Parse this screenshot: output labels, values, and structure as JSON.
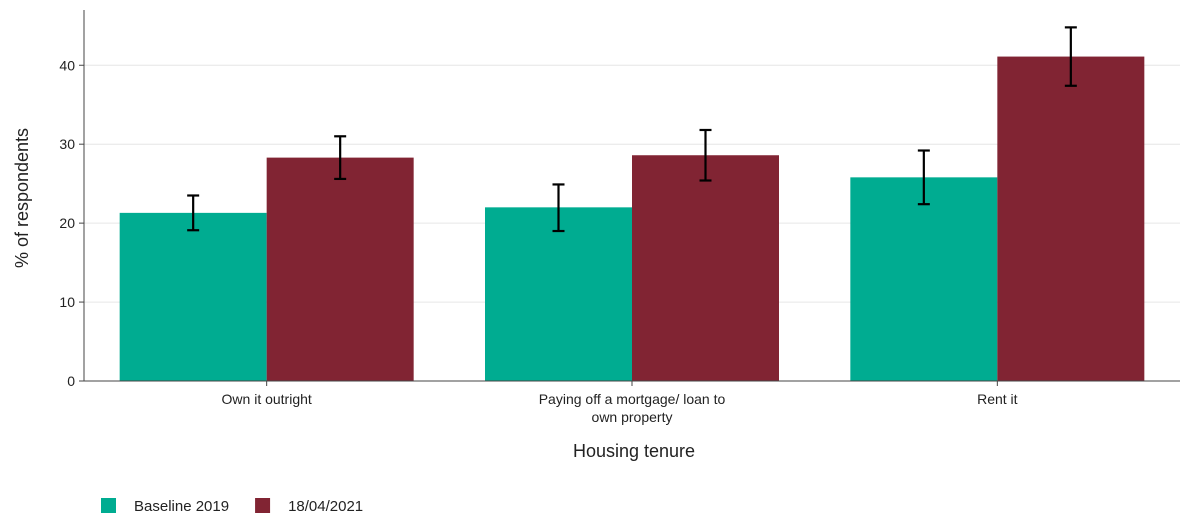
{
  "chart_data": {
    "type": "bar",
    "title": "",
    "xlabel": "Housing tenure",
    "ylabel": "% of respondents",
    "categories": [
      [
        "Own it outright"
      ],
      [
        "Paying off a mortgage/ loan to",
        "own property"
      ],
      [
        "Rent it"
      ]
    ],
    "series": [
      {
        "name": "Baseline 2019",
        "color": "#00ac91",
        "values": [
          21.3,
          22.0,
          25.8
        ],
        "error_low": [
          19.1,
          19.0,
          22.4
        ],
        "error_high": [
          23.5,
          24.9,
          29.2
        ]
      },
      {
        "name": "18/04/2021",
        "color": "#812433",
        "values": [
          28.3,
          28.6,
          41.1
        ],
        "error_low": [
          25.6,
          25.4,
          37.4
        ],
        "error_high": [
          31.0,
          31.8,
          44.8
        ]
      }
    ],
    "ylim": [
      0,
      47
    ],
    "yticks": [
      0,
      10,
      20,
      30,
      40
    ],
    "grid": true,
    "legend_position": "bottom-left"
  }
}
